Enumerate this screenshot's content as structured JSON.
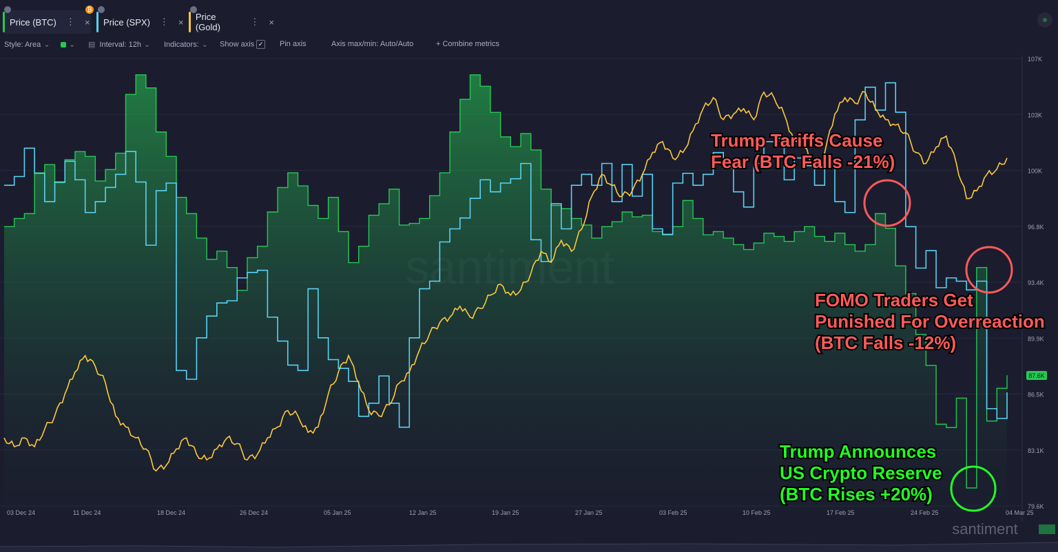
{
  "tabs": [
    {
      "label": "Price (BTC)",
      "close": "×"
    },
    {
      "label": "Price (SPX)",
      "close": "×"
    },
    {
      "label": "Price (Gold)",
      "close": "×"
    }
  ],
  "tab_menu_glyph": "⋮",
  "toolbar": {
    "style": "Style: Area",
    "interval": "Interval: 12h",
    "indicators": "Indicators:",
    "show_axis": "Show axis",
    "pin_axis": "Pin axis",
    "axis_maxmin": "Axis max/min: Auto/Auto",
    "combine": "+  Combine metrics"
  },
  "colors": {
    "btc": "#26c953",
    "spx": "#5ad2f4",
    "gold": "#ffc93c",
    "background": "#1b1d2e",
    "annotation_red": "#ff5a5a",
    "annotation_green": "#22ff22"
  },
  "watermark": "santiment",
  "footer_logo": "santiment",
  "icons": [
    "lock-icon",
    "bitcoin-icon",
    "close-icon",
    "menu-dots-icon",
    "chevron-down-icon",
    "checkbox-icon",
    "settings-circle-icon"
  ],
  "chart_data": {
    "type": "line",
    "x_ticks": [
      "03 Dec 24",
      "11 Dec 24",
      "18 Dec 24",
      "26 Dec 24",
      "05 Jan 25",
      "12 Jan 25",
      "19 Jan 25",
      "27 Jan 25",
      "03 Feb 25",
      "10 Feb 25",
      "17 Feb 25",
      "24 Feb 25",
      "04 Mar 25"
    ],
    "y_ticks": [
      "107K",
      "103K",
      "100K",
      "96.8K",
      "93.4K",
      "89.9K",
      "86.5K",
      "83.1K",
      "79.6K"
    ],
    "ylim": [
      79600,
      107000
    ],
    "current_label": "87.6K",
    "series": [
      {
        "name": "Price (BTC)",
        "style": "area-step",
        "color": "#26c953",
        "values": [
          96700,
          97200,
          97500,
          100000,
          100500,
          99400,
          100800,
          101300,
          101000,
          99500,
          100200,
          101200,
          104800,
          106000,
          105200,
          102500,
          101000,
          98500,
          97500,
          96000,
          94700,
          95200,
          94200,
          92800,
          94800,
          95500,
          97600,
          99100,
          100000,
          99200,
          98000,
          97200,
          98500,
          96400,
          94500,
          95500,
          97400,
          98100,
          99000,
          96800,
          96900,
          97200,
          98600,
          100000,
          102500,
          104500,
          106000,
          105300,
          103700,
          102200,
          101600,
          102400,
          101400,
          99000,
          98000,
          97800,
          97200,
          96800,
          96000,
          96700,
          97000,
          97600,
          97300,
          97400,
          96400,
          96200,
          96700,
          98300,
          97200,
          96200,
          96400,
          96000,
          95600,
          95300,
          95700,
          96300,
          96100,
          95800,
          96400,
          96700,
          96100,
          95800,
          96300,
          95600,
          95200,
          95600,
          97500,
          96600,
          94300,
          92600,
          90100,
          88200,
          84600,
          84400,
          86200,
          80700,
          94200,
          84800,
          86800,
          87600
        ]
      },
      {
        "name": "Price (SPX)",
        "color": "#5ad2f4",
        "values": [
          6050,
          6058,
          6084,
          6061,
          6035,
          6053,
          6072,
          6055,
          6025,
          6035,
          6048,
          6060,
          6081,
          6053,
          5995,
          6045,
          6052,
          5880,
          5872,
          5910,
          5930,
          5942,
          5944,
          5965,
          5970,
          5972,
          5929,
          5907,
          5885,
          5880,
          5955,
          5910,
          5890,
          5882,
          5870,
          5838,
          5850,
          5875,
          5850,
          5828,
          5910,
          5955,
          5962,
          5998,
          6010,
          6020,
          6038,
          6055,
          6044,
          6052,
          6056,
          6070,
          6000,
          5980,
          6033,
          6010,
          6050,
          6060,
          6050,
          6070,
          6035,
          6069,
          6040,
          6060,
          6010,
          6005,
          6052,
          6061,
          6050,
          6060,
          6080,
          6066,
          6044,
          6030,
          6070,
          6090,
          6093,
          6055,
          6075,
          6068,
          6050,
          6070,
          6035,
          6025,
          6110,
          6140,
          6119,
          6144,
          6117,
          6012,
          5974,
          5990,
          5956,
          5965,
          5962,
          5954,
          5962,
          5845,
          5836,
          5860
        ]
      },
      {
        "name": "Price (Gold)",
        "color": "#ffc93c",
        "values": [
          2640,
          2632,
          2640,
          2632,
          2648,
          2660,
          2680,
          2700,
          2715,
          2705,
          2690,
          2660,
          2650,
          2640,
          2630,
          2610,
          2615,
          2630,
          2640,
          2625,
          2620,
          2630,
          2640,
          2635,
          2620,
          2625,
          2640,
          2650,
          2665,
          2660,
          2645,
          2650,
          2680,
          2700,
          2715,
          2690,
          2665,
          2660,
          2670,
          2690,
          2700,
          2720,
          2735,
          2745,
          2750,
          2760,
          2750,
          2758,
          2770,
          2780,
          2770,
          2775,
          2790,
          2810,
          2800,
          2820,
          2810,
          2830,
          2860,
          2880,
          2870,
          2860,
          2865,
          2880,
          2900,
          2910,
          2895,
          2900,
          2920,
          2940,
          2950,
          2930,
          2935,
          2940,
          2930,
          2955,
          2950,
          2935,
          2910,
          2905,
          2885,
          2900,
          2935,
          2950,
          2945,
          2955,
          2940,
          2930,
          2925,
          2918,
          2900,
          2890,
          2905,
          2915,
          2890,
          2858,
          2865,
          2880,
          2885,
          2895
        ]
      }
    ],
    "annotations": [
      {
        "text": "Trump Tariffs Cause\nFear (BTC Falls -21%)",
        "tone": "red"
      },
      {
        "text": "FOMO Traders Get\nPunished For Overreaction\n(BTC Falls -12%)",
        "tone": "red"
      },
      {
        "text": "Trump Announces\nUS Crypto Reserve\n(BTC Rises +20%)",
        "tone": "green"
      }
    ]
  }
}
